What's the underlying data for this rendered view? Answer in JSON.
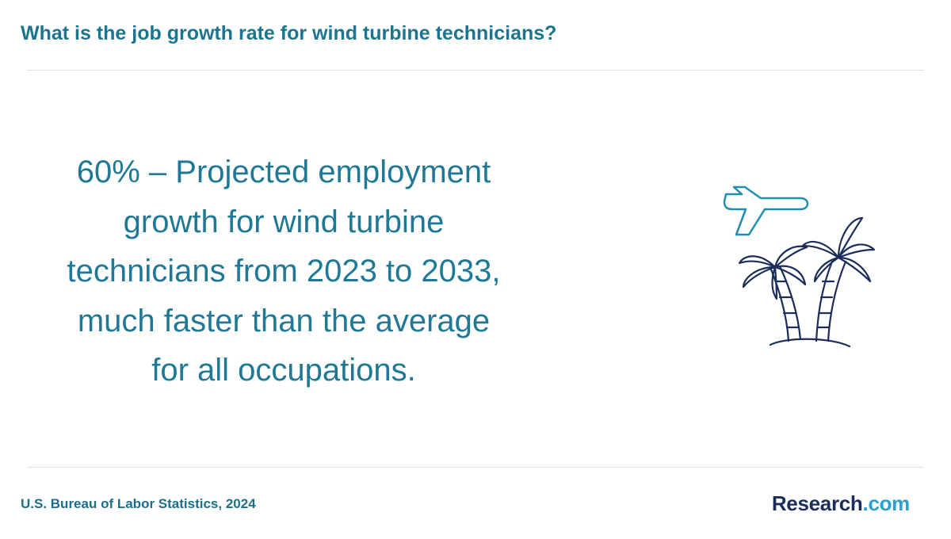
{
  "header": {
    "title": "What is the job growth rate for wind turbine technicians?"
  },
  "statement": {
    "lines": [
      "60% – Projected employment",
      "growth for wind turbine",
      "technicians from 2023 to 2033,",
      "much faster than the average",
      "for all occupations."
    ]
  },
  "footer": {
    "source": "U.S. Bureau of Labor Statistics, 2024",
    "logo": {
      "name": "Research",
      "suffix": ".com"
    }
  }
}
